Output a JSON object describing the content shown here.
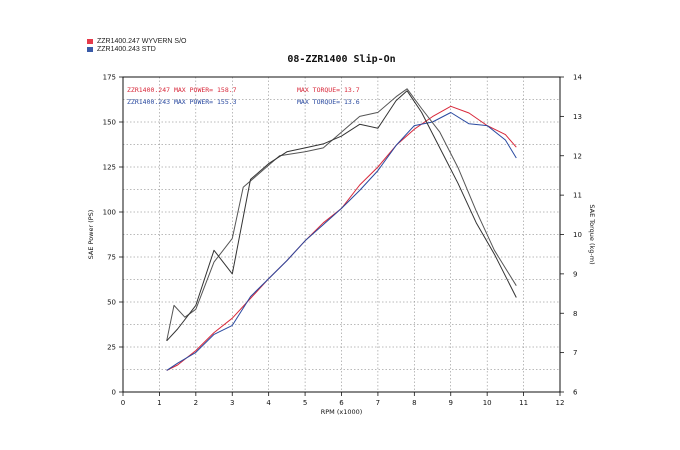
{
  "chart_data": {
    "type": "line",
    "title": "08-ZZR1400 Slip-On",
    "xlabel": "RPM (x1000)",
    "ylabel_left": "SAE Power (PS)",
    "ylabel_right": "SAE Torque (kg-m)",
    "xlim": [
      0,
      12
    ],
    "ylim_left": [
      0,
      175
    ],
    "ylim_right": [
      6,
      14
    ],
    "x_ticks": [
      "0",
      "1",
      "2",
      "3",
      "4",
      "5",
      "6",
      "7",
      "8",
      "9",
      "10",
      "11",
      "12"
    ],
    "y_left_ticks": [
      "0",
      "25",
      "50",
      "75",
      "100",
      "125",
      "150",
      "175"
    ],
    "y_right_ticks": [
      "6",
      "7",
      "8",
      "9",
      "10",
      "11",
      "12",
      "13",
      "14"
    ],
    "grid": true,
    "legend": [
      {
        "label": "ZZR1400.247  WYVERN S/O",
        "color": "#e53a4a"
      },
      {
        "label": "ZZR1400.243  STD",
        "color": "#3a5ba8"
      }
    ],
    "annotations": [
      {
        "text": "ZZR1400.247  MAX POWER= 158.7",
        "color": "#d8283a"
      },
      {
        "text": "MAX TORQUE= 13.7",
        "color": "#d8283a"
      },
      {
        "text": "ZZR1400.243  MAX POWER= 155.3",
        "color": "#2a4aa0"
      },
      {
        "text": "MAX TORQUE= 13.6",
        "color": "#2a4aa0"
      }
    ],
    "series": [
      {
        "name": "ZZR1400.247 Power",
        "axis": "left",
        "color": "#d8283a",
        "points": [
          [
            1.2,
            12
          ],
          [
            1.5,
            15
          ],
          [
            2,
            23
          ],
          [
            2.5,
            33
          ],
          [
            3,
            41
          ],
          [
            3.5,
            52
          ],
          [
            4,
            63
          ],
          [
            4.5,
            73
          ],
          [
            5,
            84
          ],
          [
            5.5,
            94
          ],
          [
            6,
            102
          ],
          [
            6.5,
            115
          ],
          [
            7,
            125
          ],
          [
            7.5,
            137
          ],
          [
            8,
            146
          ],
          [
            8.5,
            153
          ],
          [
            9,
            158.7
          ],
          [
            9.5,
            155
          ],
          [
            10,
            148
          ],
          [
            10.5,
            143
          ],
          [
            10.8,
            136
          ]
        ]
      },
      {
        "name": "ZZR1400.243 Power",
        "axis": "left",
        "color": "#2a4aa0",
        "points": [
          [
            1.2,
            12
          ],
          [
            1.5,
            16
          ],
          [
            2,
            22
          ],
          [
            2.5,
            32
          ],
          [
            3,
            37
          ],
          [
            3.5,
            53
          ],
          [
            4,
            63
          ],
          [
            4.5,
            73
          ],
          [
            5,
            84
          ],
          [
            5.5,
            93
          ],
          [
            6,
            102
          ],
          [
            6.5,
            112
          ],
          [
            7,
            123
          ],
          [
            7.5,
            137
          ],
          [
            8,
            148
          ],
          [
            8.5,
            150
          ],
          [
            9,
            155.3
          ],
          [
            9.5,
            149
          ],
          [
            10,
            148
          ],
          [
            10.5,
            140
          ],
          [
            10.8,
            130
          ]
        ]
      },
      {
        "name": "ZZR1400.247 Torque",
        "axis": "right",
        "color": "#555555",
        "points": [
          [
            1.2,
            7.3
          ],
          [
            1.4,
            8.2
          ],
          [
            1.7,
            7.9
          ],
          [
            2,
            8.1
          ],
          [
            2.5,
            9.3
          ],
          [
            3,
            9.9
          ],
          [
            3.3,
            11.2
          ],
          [
            3.8,
            11.6
          ],
          [
            4.3,
            12.0
          ],
          [
            5,
            12.1
          ],
          [
            5.5,
            12.2
          ],
          [
            6,
            12.6
          ],
          [
            6.5,
            13.0
          ],
          [
            7,
            13.1
          ],
          [
            7.5,
            13.5
          ],
          [
            7.8,
            13.7
          ],
          [
            8.2,
            13.2
          ],
          [
            8.7,
            12.6
          ],
          [
            9.2,
            11.7
          ],
          [
            9.7,
            10.6
          ],
          [
            10.2,
            9.6
          ],
          [
            10.8,
            8.7
          ]
        ]
      },
      {
        "name": "ZZR1400.243 Torque",
        "axis": "right",
        "color": "#333333",
        "points": [
          [
            1.2,
            7.3
          ],
          [
            1.5,
            7.6
          ],
          [
            2,
            8.2
          ],
          [
            2.5,
            9.6
          ],
          [
            3,
            9.0
          ],
          [
            3.5,
            11.4
          ],
          [
            4,
            11.8
          ],
          [
            4.5,
            12.1
          ],
          [
            5,
            12.2
          ],
          [
            5.5,
            12.3
          ],
          [
            6,
            12.5
          ],
          [
            6.5,
            12.8
          ],
          [
            7,
            12.7
          ],
          [
            7.5,
            13.4
          ],
          [
            7.8,
            13.65
          ],
          [
            8.2,
            13.1
          ],
          [
            8.7,
            12.2
          ],
          [
            9.2,
            11.3
          ],
          [
            9.7,
            10.3
          ],
          [
            10.2,
            9.5
          ],
          [
            10.8,
            8.4
          ]
        ]
      }
    ]
  }
}
